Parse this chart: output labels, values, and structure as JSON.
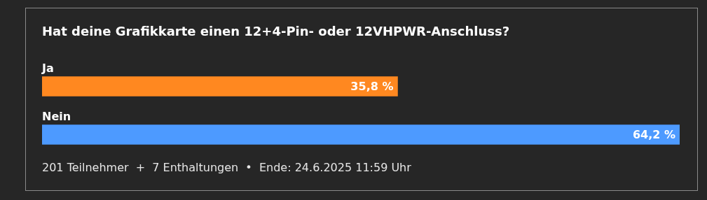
{
  "chart_data": {
    "type": "bar",
    "orientation": "horizontal",
    "title": "Hat deine Grafikkarte einen 12+4-Pin- oder 12VHPWR-Anschluss?",
    "categories": [
      "Ja",
      "Nein"
    ],
    "values": [
      35.8,
      64.2
    ],
    "colors": [
      "#ff8820",
      "#4d9aff"
    ],
    "value_labels": [
      "35,8 %",
      "64,2 %"
    ],
    "annotations": [
      "201 Teilnehmer  +  7 Enthaltungen  •  Ende: 24.6.2025 11:59 Uhr"
    ]
  }
}
